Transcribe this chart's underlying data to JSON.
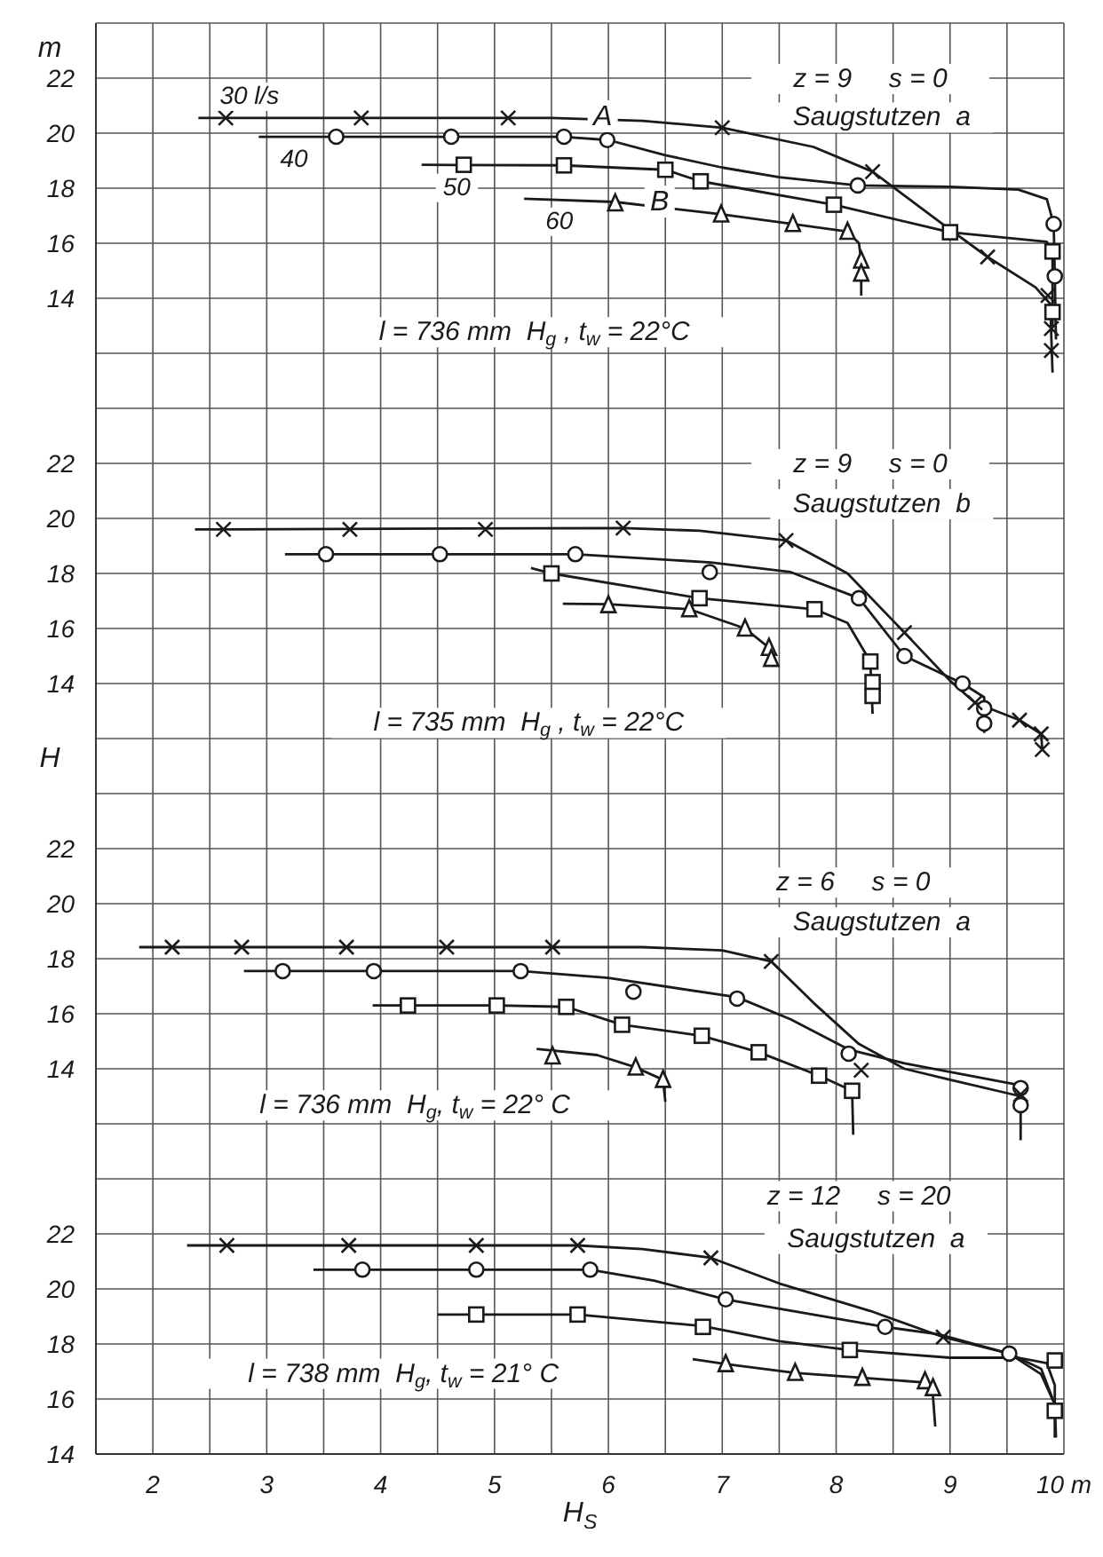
{
  "chart_data": [
    {
      "type": "line",
      "xlim": [
        1.5,
        10
      ],
      "xticks": [
        {
          "value": 1.5,
          "label": null
        },
        {
          "value": 2,
          "label": null
        },
        {
          "value": 2.5,
          "label": null
        },
        {
          "value": 3,
          "label": null
        },
        {
          "value": 3.5,
          "label": null
        },
        {
          "value": 4,
          "label": null
        },
        {
          "value": 4.5,
          "label": null
        },
        {
          "value": 5,
          "label": null
        },
        {
          "value": 5.5,
          "label": null
        },
        {
          "value": 6,
          "label": null
        },
        {
          "value": 6.5,
          "label": null
        },
        {
          "value": 7,
          "label": null
        },
        {
          "value": 7.5,
          "label": null
        },
        {
          "value": 8,
          "label": null
        },
        {
          "value": 8.5,
          "label": null
        },
        {
          "value": 9,
          "label": null
        },
        {
          "value": 9.5,
          "label": null
        },
        {
          "value": 10,
          "label": null
        }
      ],
      "ylim": [
        10,
        24
      ],
      "yticks": [
        {
          "value": 10,
          "label": null
        },
        {
          "value": 12,
          "label": null
        },
        14,
        16,
        18,
        20,
        22,
        {
          "value": 24,
          "label": null
        }
      ],
      "grid": true,
      "tick_labels": "y",
      "ylabel": "m",
      "annotations": [
        "z = 9     s = 0",
        "Saugstutzen  a",
        "l = 736 mm  H$_{g}$ , t$_{w}$ = 22°C",
        {
          "text": "A",
          "x": 5.95,
          "y": 20.55
        },
        {
          "text": "B",
          "x": 6.45,
          "y": 17.45
        }
      ],
      "series": [
        {
          "type": "line",
          "name": "30 l/s",
          "color": "#1a1a1a",
          "marker": "none",
          "x": [
            2.4,
            5.5,
            6.3,
            7.0,
            7.8,
            8.32,
            8.9,
            9.33,
            9.75,
            9.88,
            9.9
          ],
          "values": [
            20.55,
            20.55,
            20.45,
            20.2,
            19.5,
            18.6,
            16.8,
            15.5,
            14.4,
            13.8,
            11.3
          ]
        },
        {
          "type": "scatter",
          "color": "#1a1a1a",
          "marker": "cross",
          "x": [
            2.64,
            3.83,
            5.12,
            7.0,
            8.32,
            9.33,
            9.86,
            9.89,
            9.89
          ],
          "values": [
            20.55,
            20.55,
            20.55,
            20.2,
            18.6,
            15.5,
            14.1,
            12.9,
            12.1
          ]
        },
        {
          "type": "line",
          "name": "40",
          "color": "#1a1a1a",
          "marker": "none",
          "x": [
            2.93,
            5.6,
            6.0,
            6.5,
            7.0,
            7.5,
            8.19,
            9.0,
            9.6,
            9.85,
            9.91,
            9.92,
            9.93
          ],
          "values": [
            19.87,
            19.87,
            19.75,
            19.2,
            18.75,
            18.4,
            18.1,
            18.05,
            17.95,
            17.6,
            16.7,
            14.8,
            12.5
          ]
        },
        {
          "type": "scatter",
          "color": "#1a1a1a",
          "marker": "circle",
          "x": [
            3.61,
            4.62,
            5.61,
            5.99,
            8.19,
            9.91,
            9.92
          ],
          "values": [
            19.87,
            19.87,
            19.87,
            19.75,
            18.1,
            16.7,
            14.8
          ]
        },
        {
          "type": "line",
          "name": "50",
          "color": "#1a1a1a",
          "marker": "none",
          "x": [
            4.36,
            5.6,
            6.5,
            6.81,
            7.98,
            9.0,
            9.85,
            9.9,
            9.9
          ],
          "values": [
            18.85,
            18.83,
            18.67,
            18.25,
            17.4,
            16.4,
            16.05,
            15.7,
            13.0
          ]
        },
        {
          "type": "scatter",
          "color": "#1a1a1a",
          "marker": "square",
          "x": [
            4.73,
            5.61,
            6.5,
            6.81,
            7.98,
            9.0,
            9.9,
            9.9
          ],
          "values": [
            18.85,
            18.83,
            18.67,
            18.25,
            17.4,
            16.4,
            15.7,
            13.5
          ]
        },
        {
          "type": "line",
          "name": "60",
          "color": "#1a1a1a",
          "marker": "none",
          "x": [
            5.26,
            6.06,
            6.99,
            7.62,
            8.1,
            8.2,
            8.22,
            8.22
          ],
          "values": [
            17.62,
            17.5,
            17.05,
            16.7,
            16.42,
            16.0,
            15.37,
            14.1
          ]
        },
        {
          "type": "scatter",
          "color": "#1a1a1a",
          "marker": "triangle",
          "x": [
            6.06,
            6.99,
            7.62,
            8.1,
            8.22,
            8.22
          ],
          "values": [
            17.45,
            17.05,
            16.7,
            16.42,
            15.37,
            14.9
          ]
        }
      ]
    },
    {
      "type": "line",
      "xlim": [
        1.5,
        10
      ],
      "xticks": [
        {
          "value": 1.5,
          "label": null
        },
        {
          "value": 2,
          "label": null
        },
        {
          "value": 2.5,
          "label": null
        },
        {
          "value": 3,
          "label": null
        },
        {
          "value": 3.5,
          "label": null
        },
        {
          "value": 4,
          "label": null
        },
        {
          "value": 4.5,
          "label": null
        },
        {
          "value": 5,
          "label": null
        },
        {
          "value": 5.5,
          "label": null
        },
        {
          "value": 6,
          "label": null
        },
        {
          "value": 6.5,
          "label": null
        },
        {
          "value": 7,
          "label": null
        },
        {
          "value": 7.5,
          "label": null
        },
        {
          "value": 8,
          "label": null
        },
        {
          "value": 8.5,
          "label": null
        },
        {
          "value": 9,
          "label": null
        },
        {
          "value": 9.5,
          "label": null
        },
        {
          "value": 10,
          "label": null
        }
      ],
      "ylim": [
        10,
        24
      ],
      "yticks": [
        {
          "value": 10,
          "label": null
        },
        {
          "value": 12,
          "label": null
        },
        14,
        16,
        18,
        20,
        22,
        {
          "value": 24,
          "label": null
        }
      ],
      "grid": true,
      "tick_labels": "y",
      "ylabel": "H",
      "annotations": [
        "z = 9     s = 0",
        "Saugstutzen  b",
        "l = 735 mm  H$_{g}$ , t$_{w}$ = 22°C"
      ],
      "series": [
        {
          "type": "line",
          "color": "#1a1a1a",
          "marker": "none",
          "x": [
            2.37,
            6.13,
            6.8,
            7.56,
            8.1,
            8.6,
            9.0,
            9.22,
            9.61,
            9.8,
            9.81
          ],
          "values": [
            19.6,
            19.65,
            19.55,
            19.2,
            18.0,
            15.85,
            14.1,
            13.3,
            12.67,
            12.17,
            11.6
          ]
        },
        {
          "type": "scatter",
          "color": "#1a1a1a",
          "marker": "cross",
          "x": [
            2.62,
            3.73,
            4.92,
            6.13,
            7.56,
            8.6,
            9.22,
            9.61,
            9.8,
            9.81
          ],
          "values": [
            19.6,
            19.6,
            19.6,
            19.65,
            19.2,
            15.85,
            13.3,
            12.67,
            12.17,
            11.6
          ]
        },
        {
          "type": "line",
          "color": "#1a1a1a",
          "marker": "none",
          "x": [
            3.16,
            5.71,
            6.9,
            7.6,
            8.2,
            8.6,
            9.11,
            9.3,
            9.3
          ],
          "values": [
            18.7,
            18.7,
            18.4,
            18.05,
            17.1,
            15.0,
            14.0,
            13.5,
            12.2
          ]
        },
        {
          "type": "scatter",
          "color": "#1a1a1a",
          "marker": "circle",
          "x": [
            3.52,
            4.52,
            5.71,
            6.89,
            8.2,
            8.6,
            9.11,
            9.3,
            9.3
          ],
          "values": [
            18.7,
            18.7,
            18.7,
            18.05,
            17.1,
            15.0,
            14.0,
            13.1,
            12.55
          ]
        },
        {
          "type": "line",
          "color": "#1a1a1a",
          "marker": "none",
          "x": [
            5.32,
            5.5,
            6.8,
            7.81,
            8.1,
            8.3,
            8.32
          ],
          "values": [
            18.2,
            18.0,
            17.1,
            16.7,
            16.2,
            14.8,
            12.9
          ]
        },
        {
          "type": "scatter",
          "color": "#1a1a1a",
          "marker": "square",
          "x": [
            5.5,
            6.8,
            7.81,
            8.3,
            8.32,
            8.32
          ],
          "values": [
            18.0,
            17.1,
            16.7,
            14.8,
            14.05,
            13.55
          ]
        },
        {
          "type": "line",
          "color": "#1a1a1a",
          "marker": "none",
          "x": [
            5.6,
            6.0,
            6.71,
            7.2,
            7.41,
            7.43
          ],
          "values": [
            16.9,
            16.88,
            16.7,
            16.0,
            15.3,
            14.8
          ]
        },
        {
          "type": "scatter",
          "color": "#1a1a1a",
          "marker": "triangle",
          "x": [
            6.0,
            6.71,
            7.2,
            7.41,
            7.43
          ],
          "values": [
            16.85,
            16.7,
            16.0,
            15.3,
            14.9
          ]
        }
      ]
    },
    {
      "type": "line",
      "xlim": [
        1.5,
        10
      ],
      "xticks": [
        {
          "value": 1.5,
          "label": null
        },
        {
          "value": 2,
          "label": null
        },
        {
          "value": 2.5,
          "label": null
        },
        {
          "value": 3,
          "label": null
        },
        {
          "value": 3.5,
          "label": null
        },
        {
          "value": 4,
          "label": null
        },
        {
          "value": 4.5,
          "label": null
        },
        {
          "value": 5,
          "label": null
        },
        {
          "value": 5.5,
          "label": null
        },
        {
          "value": 6,
          "label": null
        },
        {
          "value": 6.5,
          "label": null
        },
        {
          "value": 7,
          "label": null
        },
        {
          "value": 7.5,
          "label": null
        },
        {
          "value": 8,
          "label": null
        },
        {
          "value": 8.5,
          "label": null
        },
        {
          "value": 9,
          "label": null
        },
        {
          "value": 9.5,
          "label": null
        },
        {
          "value": 10,
          "label": null
        }
      ],
      "ylim": [
        10,
        24
      ],
      "yticks": [
        {
          "value": 10,
          "label": null
        },
        {
          "value": 12,
          "label": null
        },
        14,
        16,
        18,
        20,
        22,
        {
          "value": 24,
          "label": null
        }
      ],
      "grid": true,
      "tick_labels": "y",
      "annotations": [
        "z = 6     s = 0",
        "Saugstutzen  a",
        "l = 736 mm  H$_{g}$, t$_{w}$ = 22° C"
      ],
      "series": [
        {
          "type": "line",
          "color": "#1a1a1a",
          "marker": "none",
          "x": [
            1.88,
            6.3,
            7.0,
            7.43,
            7.8,
            8.2,
            8.6,
            9.0,
            9.62
          ],
          "values": [
            18.42,
            18.42,
            18.3,
            17.9,
            16.4,
            14.9,
            14.0,
            13.6,
            13.0
          ]
        },
        {
          "type": "scatter",
          "color": "#1a1a1a",
          "marker": "cross",
          "x": [
            2.17,
            2.78,
            3.7,
            4.58,
            5.51,
            7.43,
            8.22,
            9.62
          ],
          "values": [
            18.42,
            18.42,
            18.42,
            18.42,
            18.42,
            17.9,
            13.95,
            13.07
          ]
        },
        {
          "type": "line",
          "color": "#1a1a1a",
          "marker": "none",
          "x": [
            2.8,
            5.23,
            6.0,
            7.13,
            7.6,
            8.11,
            8.6,
            9.62,
            9.62
          ],
          "values": [
            17.55,
            17.55,
            17.3,
            16.6,
            15.8,
            14.7,
            14.2,
            13.4,
            11.4
          ]
        },
        {
          "type": "scatter",
          "color": "#1a1a1a",
          "marker": "circle",
          "x": [
            3.14,
            3.94,
            5.23,
            6.22,
            7.13,
            8.11,
            9.62,
            9.62
          ],
          "values": [
            17.55,
            17.55,
            17.55,
            16.8,
            16.55,
            14.55,
            13.3,
            12.68
          ]
        },
        {
          "type": "line",
          "color": "#1a1a1a",
          "marker": "none",
          "x": [
            3.93,
            5.02,
            5.63,
            6.12,
            6.82,
            7.32,
            7.85,
            8.14,
            8.15
          ],
          "values": [
            16.3,
            16.3,
            16.25,
            15.6,
            15.2,
            14.6,
            13.75,
            13.2,
            11.6
          ]
        },
        {
          "type": "scatter",
          "color": "#1a1a1a",
          "marker": "square",
          "x": [
            4.24,
            5.02,
            5.63,
            6.12,
            6.82,
            7.32,
            7.85,
            8.14
          ],
          "values": [
            16.3,
            16.3,
            16.25,
            15.6,
            15.2,
            14.6,
            13.75,
            13.2
          ]
        },
        {
          "type": "line",
          "color": "#1a1a1a",
          "marker": "none",
          "x": [
            5.37,
            5.9,
            6.24,
            6.48,
            6.5
          ],
          "values": [
            14.72,
            14.5,
            14.05,
            13.6,
            12.8
          ]
        },
        {
          "type": "scatter",
          "color": "#1a1a1a",
          "marker": "triangle",
          "x": [
            5.51,
            6.24,
            6.48
          ],
          "values": [
            14.45,
            14.05,
            13.6
          ]
        }
      ]
    },
    {
      "type": "line",
      "xlim": [
        1.5,
        10
      ],
      "xticks": [
        {
          "value": 1.5,
          "label": null
        },
        2,
        {
          "value": 2.5,
          "label": null
        },
        3,
        {
          "value": 3.5,
          "label": null
        },
        4,
        {
          "value": 4.5,
          "label": null
        },
        5,
        {
          "value": 5.5,
          "label": null
        },
        6,
        {
          "value": 6.5,
          "label": null
        },
        7,
        {
          "value": 7.5,
          "label": null
        },
        8,
        {
          "value": 8.5,
          "label": null
        },
        9,
        {
          "value": 9.5,
          "label": null
        },
        {
          "value": 10,
          "label": "10 m"
        }
      ],
      "ylim": [
        14,
        24
      ],
      "yticks": [
        14,
        16,
        18,
        20,
        22,
        {
          "value": 24,
          "label": null
        }
      ],
      "grid": true,
      "xlabel": "H$_{S}$",
      "annotations": [
        "z = 12     s = 20",
        "Saugstutzen  a",
        "l = 738 mm  H$_{g}$, t$_{w}$ = 21° C"
      ],
      "series": [
        {
          "type": "line",
          "color": "#1a1a1a",
          "marker": "none",
          "x": [
            2.3,
            5.73,
            6.3,
            6.9,
            7.5,
            8.3,
            8.94,
            9.52,
            9.8,
            9.92,
            9.93
          ],
          "values": [
            21.58,
            21.58,
            21.45,
            21.13,
            20.2,
            19.2,
            18.25,
            17.65,
            16.9,
            15.8,
            14.6
          ]
        },
        {
          "type": "scatter",
          "color": "#1a1a1a",
          "marker": "cross",
          "x": [
            2.65,
            3.72,
            4.84,
            5.73,
            6.9,
            8.94
          ],
          "values": [
            21.58,
            21.58,
            21.58,
            21.58,
            21.13,
            18.25
          ]
        },
        {
          "type": "line",
          "color": "#1a1a1a",
          "marker": "none",
          "x": [
            3.41,
            5.84,
            6.4,
            7.03,
            8.43,
            8.9,
            9.52,
            9.8,
            9.92
          ],
          "values": [
            20.7,
            20.7,
            20.3,
            19.62,
            18.62,
            18.35,
            17.65,
            17.1,
            15.8
          ]
        },
        {
          "type": "scatter",
          "color": "#1a1a1a",
          "marker": "circle",
          "x": [
            3.84,
            4.84,
            5.84,
            7.03,
            8.43,
            9.52
          ],
          "values": [
            20.7,
            20.7,
            20.7,
            19.62,
            18.62,
            17.65
          ]
        },
        {
          "type": "line",
          "color": "#1a1a1a",
          "marker": "none",
          "x": [
            4.5,
            5.73,
            6.83,
            7.5,
            8.12,
            9.0,
            9.6,
            9.85,
            9.92,
            9.92
          ],
          "values": [
            19.07,
            19.07,
            18.65,
            18.1,
            17.78,
            17.5,
            17.5,
            17.3,
            16.5,
            14.6
          ]
        },
        {
          "type": "scatter",
          "color": "#1a1a1a",
          "marker": "square",
          "x": [
            4.84,
            5.73,
            6.83,
            8.12,
            9.92,
            9.92
          ],
          "values": [
            19.07,
            19.07,
            18.62,
            17.78,
            17.4,
            15.57
          ]
        },
        {
          "type": "line",
          "color": "#1a1a1a",
          "marker": "none",
          "x": [
            6.74,
            7.03,
            7.64,
            8.23,
            8.78,
            8.85,
            8.87
          ],
          "values": [
            17.45,
            17.27,
            16.95,
            16.77,
            16.6,
            16.1,
            15.0
          ]
        },
        {
          "type": "scatter",
          "color": "#1a1a1a",
          "marker": "triangle",
          "x": [
            7.03,
            7.64,
            8.23,
            8.78,
            8.85
          ],
          "values": [
            17.27,
            16.95,
            16.77,
            16.65,
            16.4
          ]
        }
      ]
    }
  ]
}
